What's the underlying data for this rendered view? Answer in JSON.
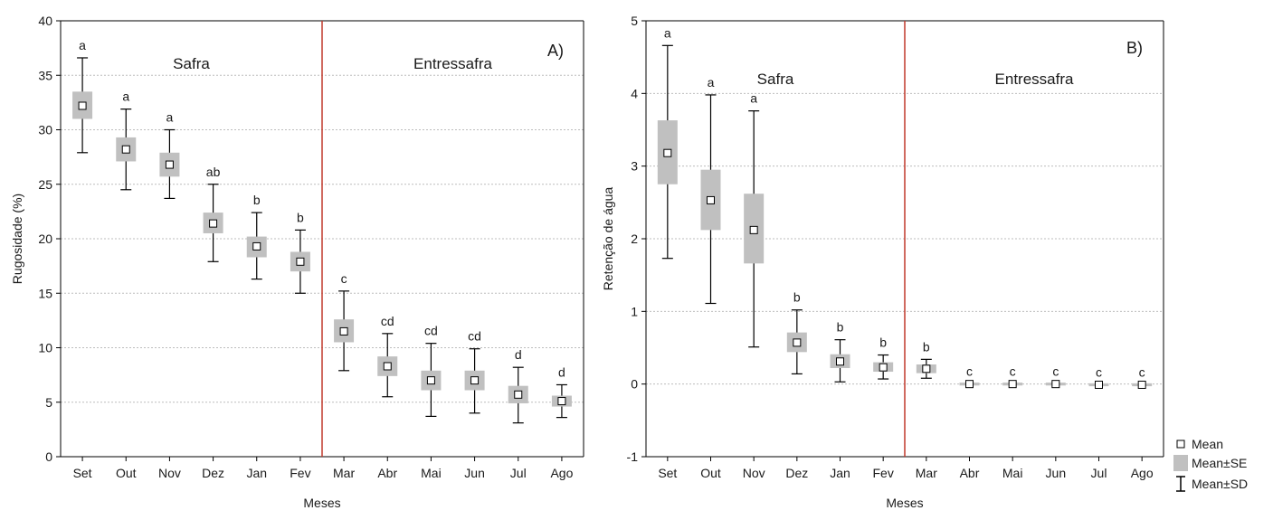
{
  "chart_data": [
    {
      "type": "box",
      "panel": "A)",
      "xlabel": "Meses",
      "ylabel": "Rugosidade (%)",
      "ylim": [
        0,
        40
      ],
      "yticks": [
        0,
        5,
        10,
        15,
        20,
        25,
        30,
        35,
        40
      ],
      "categories": [
        "Set",
        "Out",
        "Nov",
        "Dez",
        "Jan",
        "Fev",
        "Mar",
        "Abr",
        "Mai",
        "Jun",
        "Jul",
        "Ago"
      ],
      "mean": [
        32.2,
        28.2,
        26.8,
        21.4,
        19.3,
        17.9,
        11.5,
        8.3,
        7.0,
        7.0,
        5.7,
        5.1
      ],
      "se_low": [
        31.0,
        27.1,
        25.7,
        20.5,
        18.3,
        17.0,
        10.5,
        7.4,
        6.1,
        6.1,
        4.9,
        4.6
      ],
      "se_high": [
        33.5,
        29.3,
        27.9,
        22.4,
        20.2,
        18.8,
        12.6,
        9.2,
        7.9,
        7.9,
        6.5,
        5.6
      ],
      "sd_low": [
        27.9,
        24.5,
        23.7,
        17.9,
        16.3,
        15.0,
        7.9,
        5.5,
        3.7,
        4.0,
        3.1,
        3.6
      ],
      "sd_high": [
        36.6,
        31.9,
        30.0,
        25.0,
        22.4,
        20.8,
        15.2,
        11.3,
        10.4,
        9.9,
        8.2,
        6.6
      ],
      "letters": [
        "a",
        "a",
        "a",
        "ab",
        "b",
        "b",
        "c",
        "cd",
        "cd",
        "cd",
        "d",
        "d"
      ],
      "regions": [
        "Safra",
        "Entressafra"
      ],
      "divider_after_index": 5
    },
    {
      "type": "box",
      "panel": "B)",
      "xlabel": "Meses",
      "ylabel": "Retenção de água",
      "ylim": [
        -1,
        5
      ],
      "yticks": [
        -1,
        0,
        1,
        2,
        3,
        4,
        5
      ],
      "categories": [
        "Set",
        "Out",
        "Nov",
        "Dez",
        "Jan",
        "Fev",
        "Mar",
        "Abr",
        "Mai",
        "Jun",
        "Jul",
        "Ago"
      ],
      "mean": [
        3.18,
        2.53,
        2.12,
        0.57,
        0.31,
        0.23,
        0.21,
        0.0,
        0.0,
        0.0,
        -0.01,
        -0.01
      ],
      "se_low": [
        2.75,
        2.12,
        1.66,
        0.44,
        0.22,
        0.17,
        0.15,
        -0.02,
        -0.02,
        -0.02,
        -0.03,
        -0.03
      ],
      "se_high": [
        3.63,
        2.95,
        2.62,
        0.71,
        0.41,
        0.3,
        0.27,
        0.02,
        0.02,
        0.02,
        0.01,
        0.01
      ],
      "sd_low": [
        1.73,
        1.11,
        0.51,
        0.14,
        0.03,
        0.07,
        0.08,
        0.0,
        0.0,
        0.0,
        -0.01,
        -0.01
      ],
      "sd_high": [
        4.66,
        3.98,
        3.76,
        1.02,
        0.61,
        0.4,
        0.34,
        0.0,
        0.0,
        0.0,
        -0.01,
        -0.01
      ],
      "letters": [
        "a",
        "a",
        "a",
        "b",
        "b",
        "b",
        "b",
        "c",
        "c",
        "c",
        "c",
        "c"
      ],
      "regions": [
        "Safra",
        "Entressafra"
      ],
      "divider_after_index": 5
    }
  ],
  "legend": {
    "items": [
      "Mean",
      "Mean±SE",
      "Mean±SD"
    ]
  },
  "colors": {
    "box": "#c0c0c0",
    "divider": "#c0392b",
    "grid": "#bdbdbd",
    "axis": "#000000"
  }
}
